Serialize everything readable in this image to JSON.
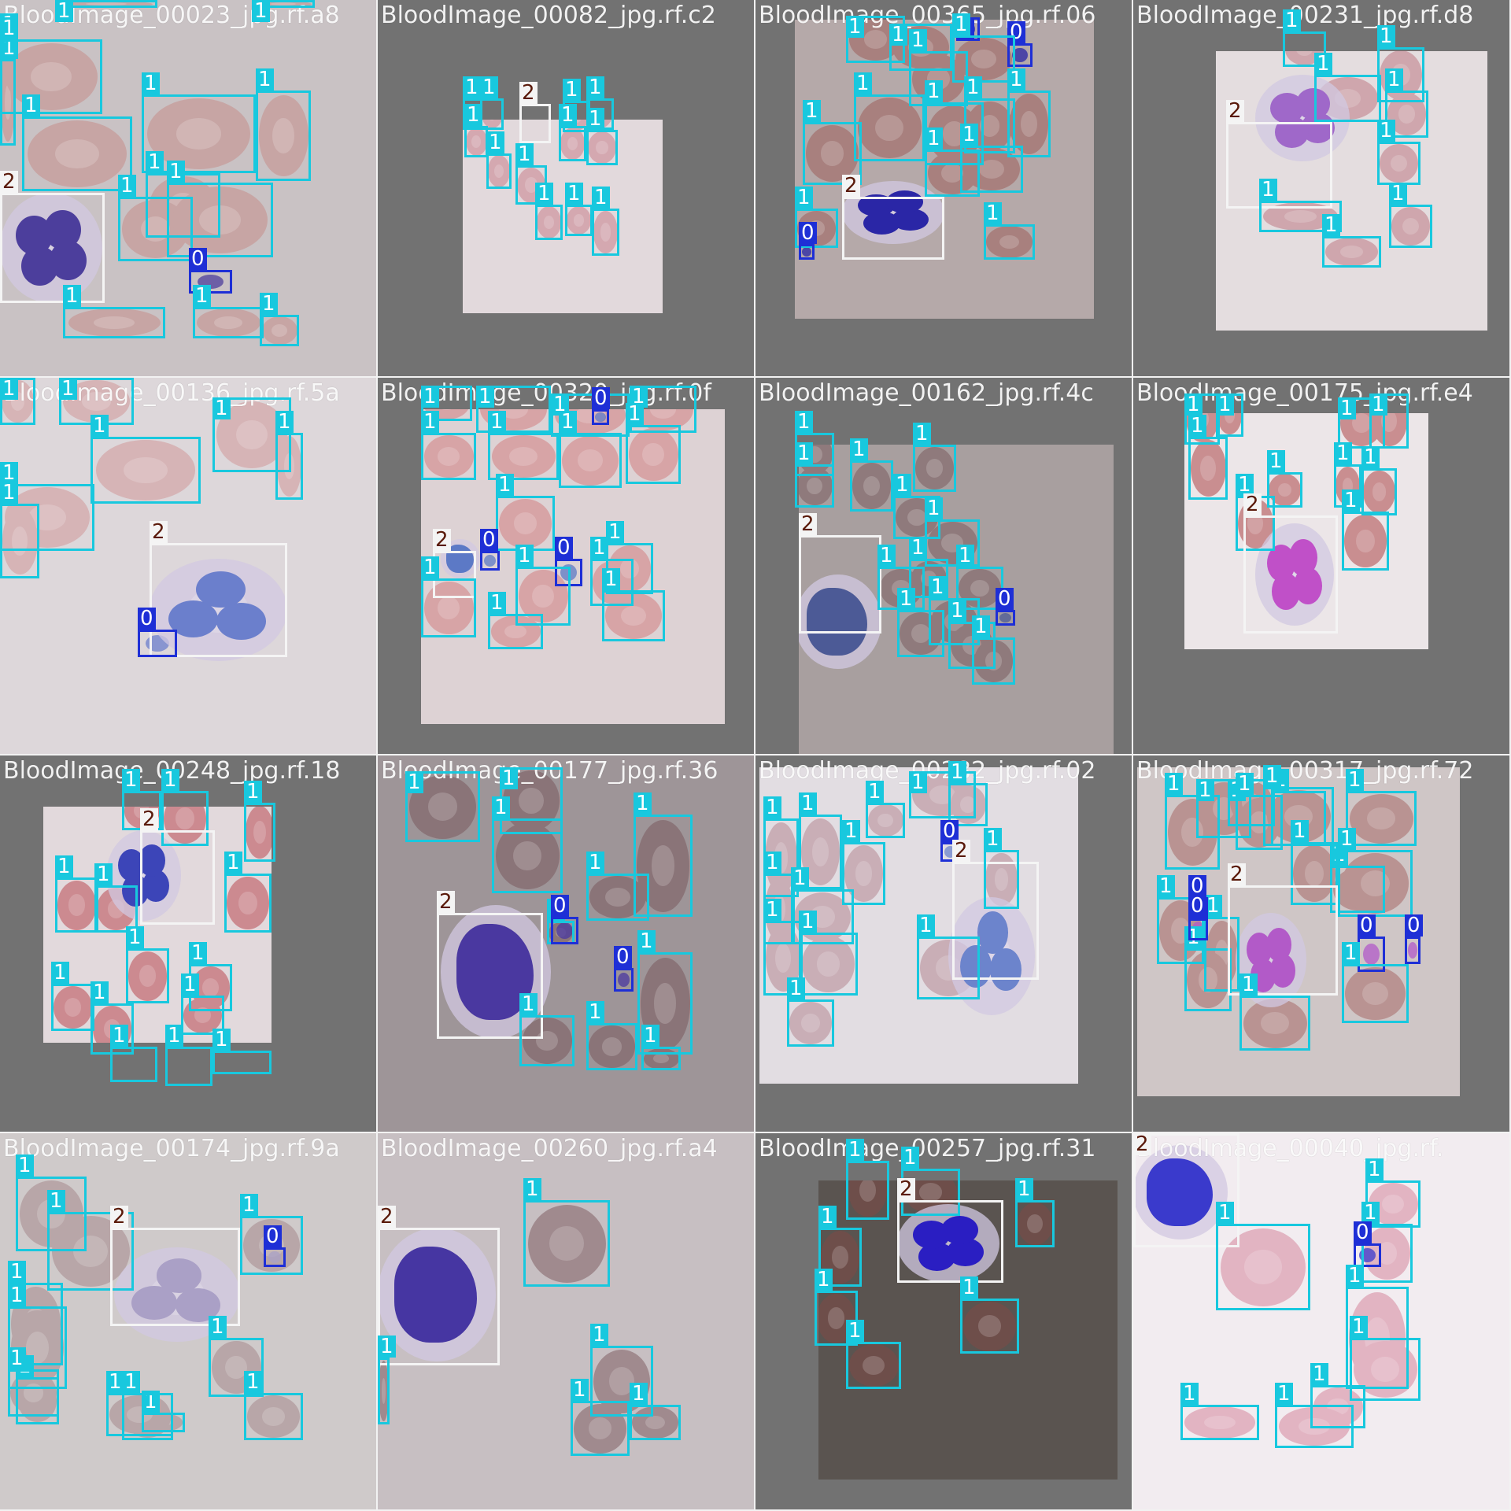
{
  "classes": {
    "0": {
      "name": "0",
      "color": "#1e2fd6",
      "tag_text_color": "#ffffff"
    },
    "1": {
      "name": "1",
      "color": "#18c8de",
      "tag_text_color": "#ffffff"
    },
    "2": {
      "name": "2",
      "color": "#f4f4f4",
      "tag_text_color": "#5a1a0a"
    }
  },
  "tiles": [
    {
      "label": "BloodImage_00023_jpg.rf.a8",
      "bg": "#c9c2c4",
      "rbc": "#c7a5a4",
      "wbc": "#4c3e9c",
      "wbc_kind": "seg"
    },
    {
      "label": "BloodImage_00082_jpg.rf.c2",
      "bg": "#e2d9dc",
      "rbc": "#d4a8b0",
      "wbc": "#8d78c6",
      "wbc_kind": "small"
    },
    {
      "label": "BloodImage_00365_jpg.rf.06",
      "bg": "#b5a9a9",
      "rbc": "#a8807e",
      "wbc": "#2a26a6",
      "wbc_kind": "seg"
    },
    {
      "label": "BloodImage_00231_jpg.rf.d8",
      "bg": "#e4dddf",
      "rbc": "#cfa6ad",
      "wbc": "#9f68c9",
      "wbc_kind": "seg"
    },
    {
      "label": "BloodImage_00136_jpg.rf.5a",
      "bg": "#ddd7da",
      "rbc": "#d6b4b6",
      "wbc": "#6b7fcc",
      "wbc_kind": "band"
    },
    {
      "label": "BloodImage_00320_jpg.rf.0f",
      "bg": "#ddd2d4",
      "rbc": "#d7a4a6",
      "wbc": "#5c79c6",
      "wbc_kind": "small"
    },
    {
      "label": "BloodImage_00162_jpg.rf.4c",
      "bg": "#a89f9f",
      "rbc": "#8f7a7c",
      "wbc": "#4c5a96",
      "wbc_kind": "mono"
    },
    {
      "label": "BloodImage_00175_jpg.rf.e4",
      "bg": "#ece6e8",
      "rbc": "#c98e90",
      "wbc": "#c050c8",
      "wbc_kind": "seg"
    },
    {
      "label": "BloodImage_00248_jpg.rf.18",
      "bg": "#e2d9dc",
      "rbc": "#cc8a90",
      "wbc": "#3c45b8",
      "wbc_kind": "seg"
    },
    {
      "label": "BloodImage_00177_jpg.rf.36",
      "bg": "#9e9598",
      "rbc": "#8a7478",
      "wbc": "#4a38a0",
      "wbc_kind": "mono"
    },
    {
      "label": "BloodImage_00282_jpg.rf.02",
      "bg": "#e2dde2",
      "rbc": "#c9aeb6",
      "wbc": "#6c84cc",
      "wbc_kind": "band"
    },
    {
      "label": "BloodImage_00317_jpg.rf.72",
      "bg": "#cfc6c6",
      "rbc": "#b99392",
      "wbc": "#b25ac8",
      "wbc_kind": "seg"
    },
    {
      "label": "BloodImage_00174_jpg.rf.9a",
      "bg": "#cfcaca",
      "rbc": "#b8a6a8",
      "wbc": "#aaa0c6",
      "wbc_kind": "band"
    },
    {
      "label": "BloodImage_00260_jpg.rf.a4",
      "bg": "#c7bfc2",
      "rbc": "#a08a8e",
      "wbc": "#4636a2",
      "wbc_kind": "mono"
    },
    {
      "label": "BloodImage_00257_jpg.rf.31",
      "bg": "#5a5450",
      "rbc": "#6e4e4a",
      "wbc": "#2a1ec2",
      "wbc_kind": "seg"
    },
    {
      "label": "BloodImage_00040_jpg.rf.",
      "bg": "#f2ecf0",
      "rbc": "#e2b4c2",
      "wbc": "#3a3acc",
      "wbc_kind": "edge"
    }
  ]
}
